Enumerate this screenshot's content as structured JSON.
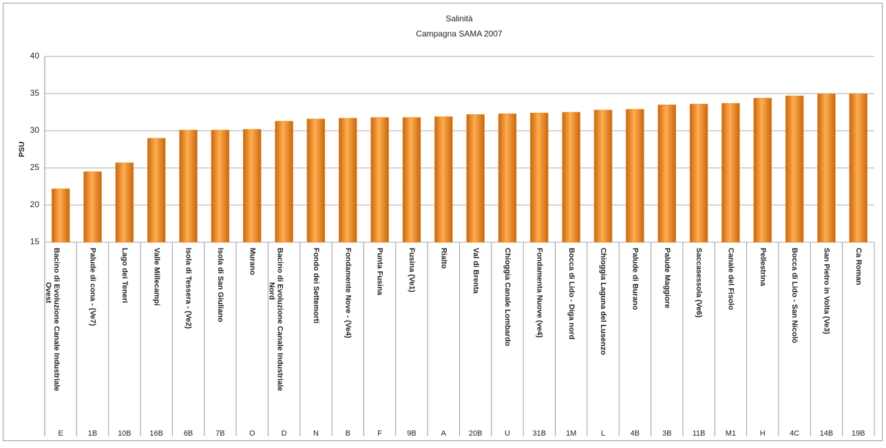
{
  "chart_data": {
    "type": "bar",
    "title": "Salinità",
    "subtitle": "Campagna SAMA 2007",
    "y_label": "PSU",
    "categories": [
      "Bacino di Evoluzione Canale Industriale Ovest",
      "Palude di cona - (Ve7)",
      "Lago dei Teneri",
      "Valle Millecampi",
      "Isola di Tessera - (Ve2)",
      "Isola di San Giuliano",
      "Murano",
      "Bacino di Evoluzione Canale Industriale Nord",
      "Fondo dei Settemorti",
      "Fondamente Nove - (Ve4)",
      "Punta Fusina",
      "Fusina (Ve1)",
      "Rialto",
      "Val di Brenta",
      "Chioggia Canale Lombardo",
      "Fondamenta Nuove (ve4)",
      "Bocca di Lido - Diga nord",
      "Chioggia Laguna del Lusenzo",
      "Palude di Burano",
      "Palude Maggiore",
      "Saccasessola (Ve6)",
      "Canale del Fisolo",
      "Pellestrina",
      "Bocca di Lido - San Nicolò",
      "San Pietro in Volta (Ve3)",
      "Ca Roman"
    ],
    "codes": [
      "E",
      "1B",
      "10B",
      "16B",
      "6B",
      "7B",
      "O",
      "D",
      "N",
      "B",
      "F",
      "9B",
      "A",
      "20B",
      "U",
      "31B",
      "1M",
      "L",
      "4B",
      "3B",
      "11B",
      "M1",
      "H",
      "4C",
      "14B",
      "19B"
    ],
    "values": [
      22.2,
      24.5,
      25.7,
      29.0,
      30.1,
      30.1,
      30.2,
      31.3,
      31.6,
      31.7,
      31.8,
      31.8,
      31.9,
      32.2,
      32.3,
      32.4,
      32.5,
      32.8,
      32.9,
      33.5,
      33.6,
      33.7,
      34.4,
      34.7,
      35.0,
      35.0
    ],
    "color": "#f0902a",
    "ylim": [
      15,
      40
    ],
    "yticks": [
      15,
      20,
      25,
      30,
      35,
      40
    ],
    "grid": true
  }
}
